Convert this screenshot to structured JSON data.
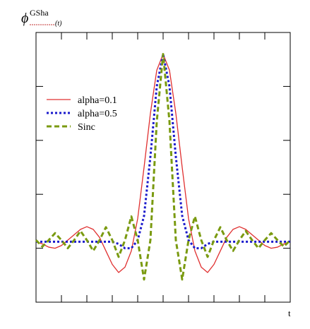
{
  "chart_data": {
    "type": "line",
    "ylabel": {
      "symbol": "ϕ",
      "superscript": "GSha",
      "subscript": "(t)"
    },
    "xlabel": "t",
    "x": [
      -5,
      -4.75,
      -4.5,
      -4.25,
      -4,
      -3.75,
      -3.5,
      -3.25,
      -3,
      -2.75,
      -2.5,
      -2.25,
      -2,
      -1.75,
      -1.5,
      -1.25,
      -1,
      -0.75,
      -0.5,
      -0.25,
      0,
      0.25,
      0.5,
      0.75,
      1,
      1.25,
      1.5,
      1.75,
      2,
      2.25,
      2.5,
      2.75,
      3,
      3.25,
      3.5,
      3.75,
      4,
      4.25,
      4.5,
      4.75,
      5
    ],
    "series": [
      {
        "name": "alpha=0.1",
        "color": "#e03030",
        "dash": "solid",
        "values": [
          1.12,
          1.08,
          1.02,
          1.0,
          1.05,
          1.15,
          1.25,
          1.35,
          1.4,
          1.35,
          1.2,
          0.95,
          0.7,
          0.55,
          0.65,
          0.95,
          1.55,
          2.5,
          3.5,
          4.3,
          4.6,
          4.3,
          3.5,
          2.5,
          1.55,
          0.95,
          0.65,
          0.55,
          0.7,
          0.95,
          1.2,
          1.35,
          1.4,
          1.35,
          1.25,
          1.15,
          1.05,
          1.0,
          1.02,
          1.08,
          1.12
        ]
      },
      {
        "name": "alpha=0.5",
        "color": "#1a1acc",
        "dash": "dotted",
        "values": [
          1.12,
          1.12,
          1.12,
          1.12,
          1.12,
          1.12,
          1.12,
          1.12,
          1.12,
          1.12,
          1.12,
          1.12,
          1.12,
          1.08,
          1.0,
          1.0,
          1.15,
          1.6,
          2.7,
          4.0,
          4.6,
          4.0,
          2.7,
          1.6,
          1.15,
          1.0,
          1.0,
          1.08,
          1.12,
          1.12,
          1.12,
          1.12,
          1.12,
          1.12,
          1.12,
          1.12,
          1.12,
          1.12,
          1.12,
          1.12,
          1.12
        ]
      },
      {
        "name": "Sinc",
        "color": "#7a9a10",
        "dash": "dashed",
        "values": [
          1.15,
          1.03,
          1.15,
          1.28,
          1.15,
          1.0,
          1.15,
          1.32,
          1.15,
          0.95,
          1.15,
          1.39,
          1.15,
          0.84,
          1.15,
          1.59,
          1.15,
          0.42,
          1.15,
          3.35,
          4.6,
          3.35,
          1.15,
          0.42,
          1.15,
          1.59,
          1.15,
          0.84,
          1.15,
          1.39,
          1.15,
          0.95,
          1.15,
          1.32,
          1.15,
          1.0,
          1.15,
          1.28,
          1.15,
          1.03,
          1.15
        ]
      }
    ],
    "xlim": [
      -5,
      5
    ],
    "xticks": [
      -4,
      -3,
      -2,
      -1,
      0,
      1,
      2,
      3,
      4
    ],
    "ylim": [
      0,
      5
    ],
    "yticks": [
      1,
      2,
      3,
      4
    ],
    "legend": "upper left"
  }
}
